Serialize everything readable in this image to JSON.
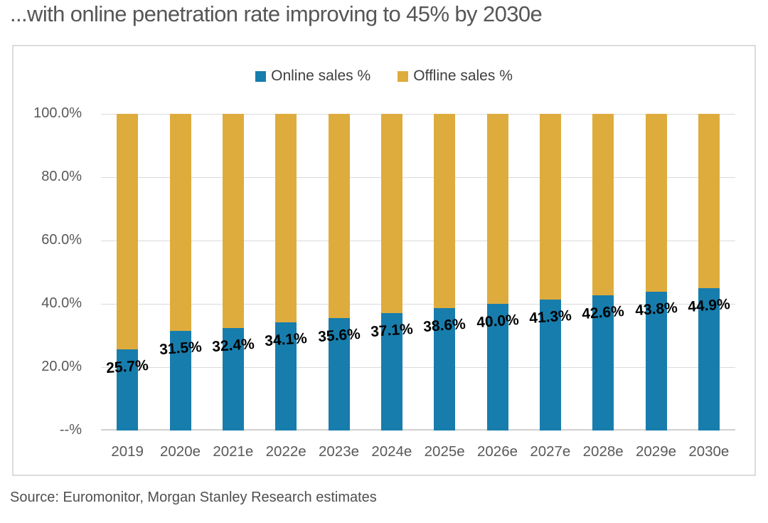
{
  "title": "...with online penetration rate improving to 45% by 2030e",
  "source": "Source: Euromonitor, Morgan Stanley Research estimates",
  "colors": {
    "online": "#177DAC",
    "offline": "#DEAC3D",
    "gridline": "#DADADA",
    "axis_text": "#595959",
    "title_text": "#565656",
    "box_border": "#DCDCDC",
    "data_label": "#000000",
    "legend_text": "#3F3F3F"
  },
  "legend": {
    "online_label": "Online sales %",
    "offline_label": "Offline sales %"
  },
  "chart_data": {
    "type": "bar",
    "stacked": true,
    "title": "...with online penetration rate improving to 45% by 2030e",
    "xlabel": "",
    "ylabel": "",
    "ylim": [
      0,
      100
    ],
    "grid": true,
    "legend_position": "top",
    "categories": [
      "2019",
      "2020e",
      "2021e",
      "2022e",
      "2023e",
      "2024e",
      "2025e",
      "2026e",
      "2027e",
      "2028e",
      "2029e",
      "2030e"
    ],
    "series": [
      {
        "name": "Online sales %",
        "color": "#177DAC",
        "values": [
          25.7,
          31.5,
          32.4,
          34.1,
          35.6,
          37.1,
          38.6,
          40.0,
          41.3,
          42.6,
          43.8,
          44.9
        ]
      },
      {
        "name": "Offline sales %",
        "color": "#DEAC3D",
        "values": [
          74.3,
          68.5,
          67.6,
          65.9,
          64.4,
          62.9,
          61.4,
          60.0,
          58.7,
          57.4,
          56.2,
          55.1
        ]
      }
    ],
    "data_labels": [
      "25.7%",
      "31.5%",
      "32.4%",
      "34.1%",
      "35.6%",
      "37.1%",
      "38.6%",
      "40.0%",
      "41.3%",
      "42.6%",
      "43.8%",
      "44.9%"
    ],
    "y_ticks": [
      {
        "value": 100,
        "label": "100.0%"
      },
      {
        "value": 80,
        "label": "80.0%"
      },
      {
        "value": 60,
        "label": "60.0%"
      },
      {
        "value": 40,
        "label": "40.0%"
      },
      {
        "value": 20,
        "label": "20.0%"
      },
      {
        "value": 0,
        "label": "--%"
      }
    ]
  }
}
